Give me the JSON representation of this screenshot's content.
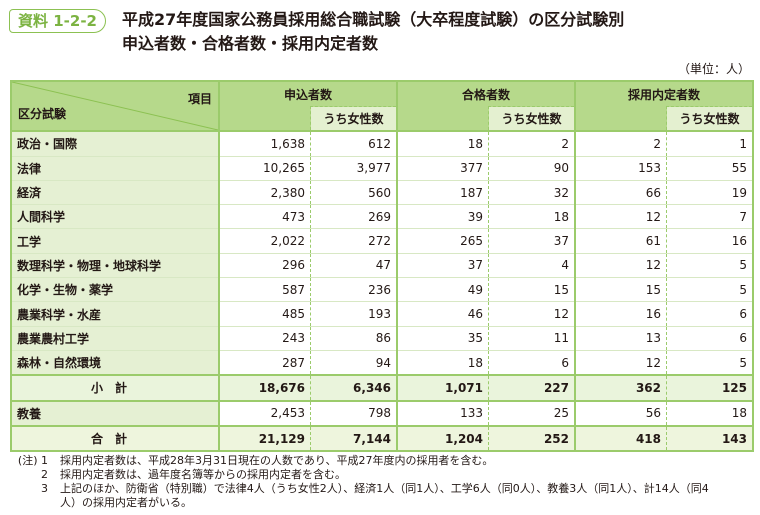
{
  "header": {
    "badge": "資料 1-2-2",
    "title_line1": "平成27年度国家公務員採用総合職試験（大卒程度試験）の区分試験別",
    "title_line2": "申込者数・合格者数・採用内定者数",
    "unit": "（単位：人）"
  },
  "table": {
    "corner_top": "項目",
    "corner_bottom": "区分試験",
    "groups": [
      "申込者数",
      "合格者数",
      "採用内定者数"
    ],
    "sub_label": "うち女性数",
    "rows": [
      {
        "label": "政治・国際",
        "values": [
          "1,638",
          "612",
          "18",
          "2",
          "2",
          "1"
        ]
      },
      {
        "label": "法律",
        "values": [
          "10,265",
          "3,977",
          "377",
          "90",
          "153",
          "55"
        ]
      },
      {
        "label": "経済",
        "values": [
          "2,380",
          "560",
          "187",
          "32",
          "66",
          "19"
        ]
      },
      {
        "label": "人間科学",
        "values": [
          "473",
          "269",
          "39",
          "18",
          "12",
          "7"
        ]
      },
      {
        "label": "工学",
        "values": [
          "2,022",
          "272",
          "265",
          "37",
          "61",
          "16"
        ]
      },
      {
        "label": "数理科学・物理・地球科学",
        "values": [
          "296",
          "47",
          "37",
          "4",
          "12",
          "5"
        ]
      },
      {
        "label": "化学・生物・薬学",
        "values": [
          "587",
          "236",
          "49",
          "15",
          "15",
          "5"
        ]
      },
      {
        "label": "農業科学・水産",
        "values": [
          "485",
          "193",
          "46",
          "12",
          "16",
          "6"
        ]
      },
      {
        "label": "農業農村工学",
        "values": [
          "243",
          "86",
          "35",
          "11",
          "13",
          "6"
        ]
      },
      {
        "label": "森林・自然環境",
        "values": [
          "287",
          "94",
          "18",
          "6",
          "12",
          "5"
        ]
      },
      {
        "label": "小計",
        "values": [
          "18,676",
          "6,346",
          "1,071",
          "227",
          "362",
          "125"
        ],
        "kind": "sum"
      },
      {
        "label": "教養",
        "values": [
          "2,453",
          "798",
          "133",
          "25",
          "56",
          "18"
        ]
      },
      {
        "label": "合計",
        "values": [
          "21,129",
          "7,144",
          "1,204",
          "252",
          "418",
          "143"
        ],
        "kind": "total"
      }
    ]
  },
  "notes": {
    "prefix": "(注) 1",
    "items": [
      {
        "num": "(注) 1",
        "text": "採用内定者数は、平成28年3月31日現在の人数であり、平成27年度内の採用者を含む。"
      },
      {
        "num": "2",
        "text": "採用内定者数は、過年度名簿等からの採用内定者を含む。"
      },
      {
        "num": "3",
        "text": "上記のほか、防衛省（特別職）で法律4人（うち女性2人）、経済1人（同1人）、工学6人（同0人）、教養3人（同1人）、計14人（同4人）の採用内定者がいる。"
      }
    ]
  },
  "colors": {
    "accent": "#8cc152",
    "header_bg": "#b6d98b",
    "label_bg": "#e5f0d3"
  }
}
